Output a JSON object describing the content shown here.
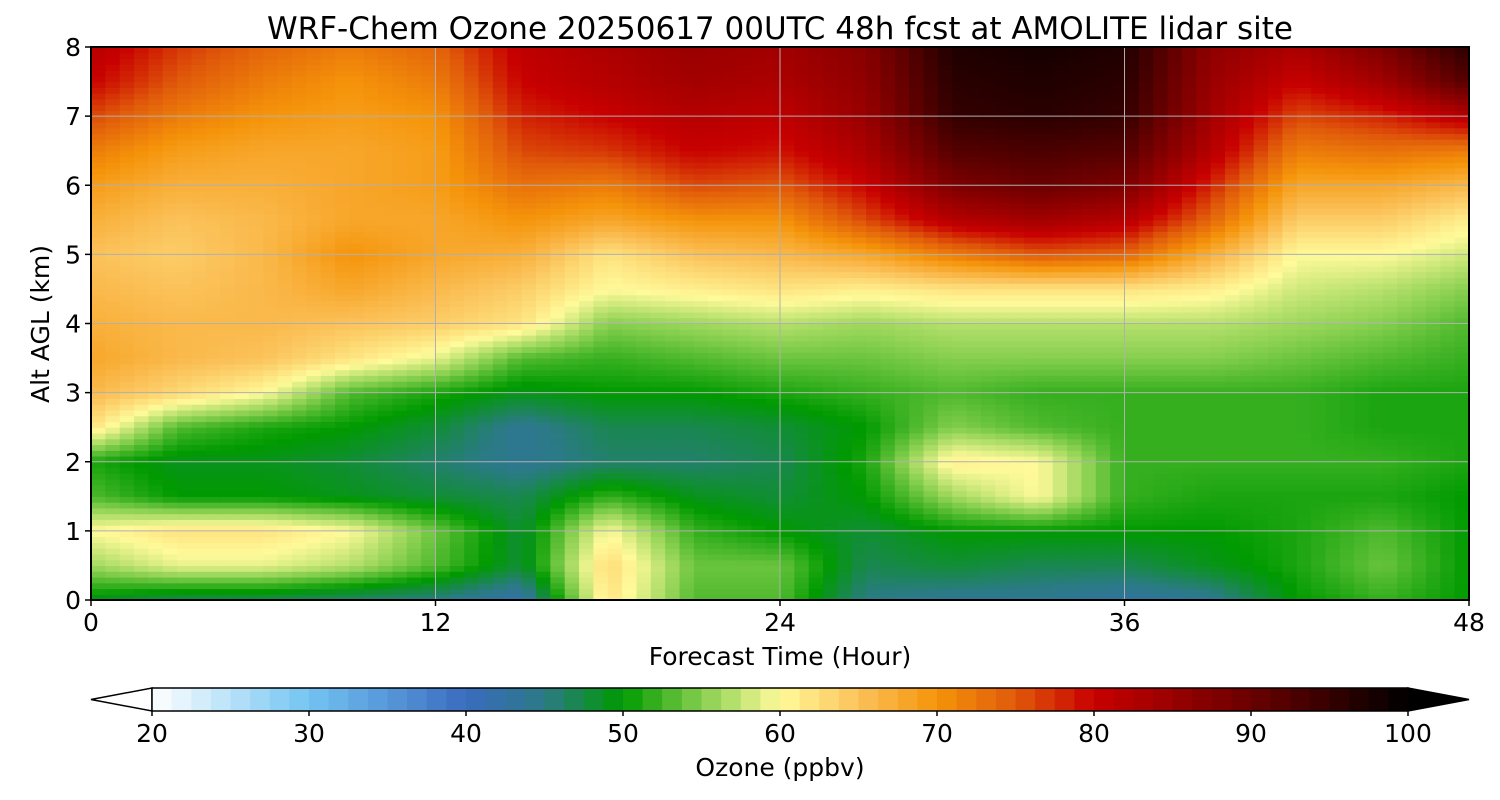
{
  "chart_data": {
    "type": "heatmap",
    "title": "WRF-Chem Ozone  20250617 00UTC 48h fcst at AMOLITE lidar site",
    "xlabel": "Forecast Time (Hour)",
    "ylabel": "Alt AGL (km)",
    "xlim": [
      0,
      48
    ],
    "ylim": [
      0,
      8
    ],
    "x_ticks": [
      "0",
      "12",
      "24",
      "36",
      "48"
    ],
    "y_ticks": [
      "0",
      "1",
      "2",
      "3",
      "4",
      "5",
      "6",
      "7",
      "8"
    ],
    "grid": true,
    "x": [
      0,
      3,
      6,
      9,
      12,
      15,
      18,
      21,
      24,
      27,
      30,
      33,
      36,
      39,
      42,
      45,
      48
    ],
    "y": [
      0,
      0.5,
      1,
      1.5,
      2,
      2.5,
      3,
      3.5,
      4,
      4.5,
      5,
      5.5,
      6,
      6.5,
      7,
      7.5,
      8
    ],
    "z_units": "ppbv",
    "z": [
      [
        49,
        47,
        47,
        46,
        45,
        42,
        62,
        53,
        53,
        45,
        44,
        44,
        43,
        44,
        50,
        52,
        50
      ],
      [
        56,
        59,
        59,
        57,
        53,
        48,
        63,
        54,
        54,
        47,
        48,
        47,
        47,
        49,
        51,
        54,
        50
      ],
      [
        60,
        62,
        62,
        60,
        54,
        48,
        60,
        52,
        50,
        48,
        50,
        50,
        50,
        50,
        51,
        53,
        50
      ],
      [
        53,
        50,
        50,
        49,
        48,
        47,
        52,
        49,
        48,
        50,
        56,
        60,
        52,
        51,
        51,
        51,
        50
      ],
      [
        51,
        49,
        49,
        48,
        46,
        44,
        46,
        46,
        47,
        51,
        61,
        60,
        52,
        52,
        52,
        52,
        51
      ],
      [
        62,
        53,
        51,
        50,
        48,
        44,
        47,
        47,
        48,
        50,
        55,
        53,
        52,
        52,
        52,
        51,
        51
      ],
      [
        66,
        63,
        60,
        53,
        51,
        49,
        50,
        50,
        51,
        52,
        53,
        52,
        52,
        52,
        52,
        51,
        51
      ],
      [
        68,
        66,
        65,
        62,
        59,
        53,
        52,
        53,
        54,
        54,
        55,
        55,
        55,
        55,
        54,
        53,
        52
      ],
      [
        67,
        66,
        66,
        65,
        64,
        62,
        55,
        56,
        57,
        56,
        57,
        57,
        57,
        57,
        56,
        55,
        53
      ],
      [
        66,
        65,
        66,
        68,
        66,
        64,
        60,
        61,
        62,
        61,
        62,
        62,
        62,
        61,
        58,
        57,
        55
      ],
      [
        65,
        64,
        66,
        70,
        68,
        67,
        62,
        65,
        66,
        68,
        72,
        75,
        74,
        67,
        60,
        60,
        58
      ],
      [
        67,
        65,
        66,
        68,
        68,
        70,
        68,
        70,
        70,
        76,
        82,
        84,
        82,
        74,
        64,
        64,
        61
      ],
      [
        69,
        67,
        67,
        68,
        69,
        73,
        72,
        76,
        75,
        80,
        88,
        90,
        88,
        78,
        68,
        68,
        66
      ],
      [
        72,
        69,
        68,
        68,
        69,
        76,
        77,
        80,
        79,
        83,
        92,
        93,
        92,
        82,
        72,
        73,
        72
      ],
      [
        76,
        72,
        70,
        69,
        70,
        78,
        80,
        82,
        81,
        85,
        95,
        96,
        95,
        84,
        76,
        78,
        82
      ],
      [
        80,
        75,
        72,
        70,
        72,
        80,
        82,
        84,
        83,
        86,
        96,
        97,
        96,
        85,
        80,
        84,
        92
      ],
      [
        82,
        77,
        74,
        72,
        74,
        81,
        83,
        85,
        84,
        87,
        97,
        98,
        97,
        86,
        83,
        88,
        96
      ]
    ],
    "colorbar": {
      "label": "Ozone  (ppbv)",
      "min": 20,
      "max": 100,
      "ticks": [
        "20",
        "30",
        "40",
        "50",
        "60",
        "70",
        "80",
        "90",
        "100"
      ],
      "extend": "both",
      "stops": [
        [
          20,
          "#ffffff"
        ],
        [
          30,
          "#72c4f2"
        ],
        [
          40,
          "#3a6bbf"
        ],
        [
          45,
          "#2b7a86"
        ],
        [
          50,
          "#009a00"
        ],
        [
          55,
          "#86cf4e"
        ],
        [
          60,
          "#fffa9a"
        ],
        [
          65,
          "#fbc25a"
        ],
        [
          70,
          "#f5940a"
        ],
        [
          75,
          "#e05a0a"
        ],
        [
          80,
          "#c80000"
        ],
        [
          90,
          "#6a0000"
        ],
        [
          100,
          "#000000"
        ]
      ]
    }
  }
}
